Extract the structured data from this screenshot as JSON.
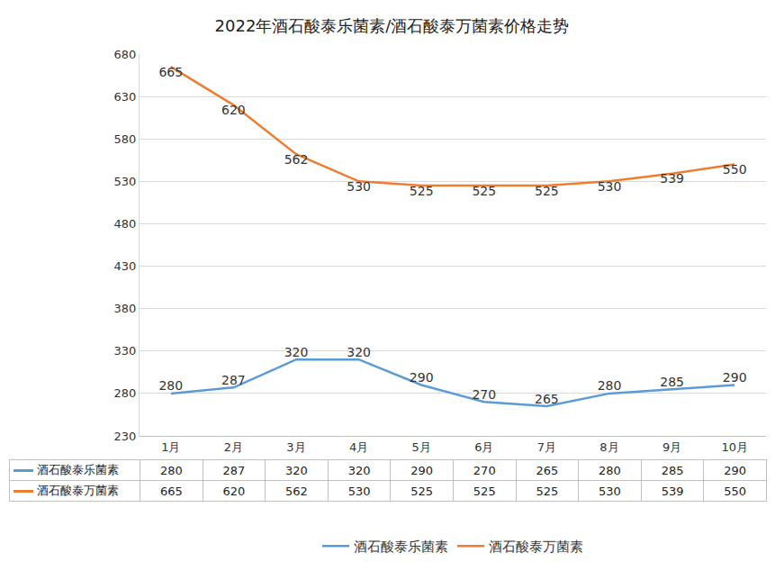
{
  "chart_data": {
    "type": "line",
    "title": "2022年酒石酸泰乐菌素/酒石酸泰万菌素价格走势",
    "categories": [
      "1月",
      "2月",
      "3月",
      "4月",
      "5月",
      "6月",
      "7月",
      "8月",
      "9月",
      "10月"
    ],
    "series": [
      {
        "name": "酒石酸泰乐菌素",
        "color": "#5b9bd5",
        "values": [
          280,
          287,
          320,
          320,
          290,
          270,
          265,
          280,
          285,
          290
        ]
      },
      {
        "name": "酒石酸泰万菌素",
        "color": "#ed7d31",
        "values": [
          665,
          620,
          562,
          530,
          525,
          525,
          525,
          530,
          539,
          550
        ]
      }
    ],
    "ylim": [
      230,
      680
    ],
    "yticks": [
      230,
      280,
      330,
      380,
      430,
      480,
      530,
      580,
      630,
      680
    ],
    "grid": true,
    "data_labels": true,
    "legend": "bottom"
  }
}
